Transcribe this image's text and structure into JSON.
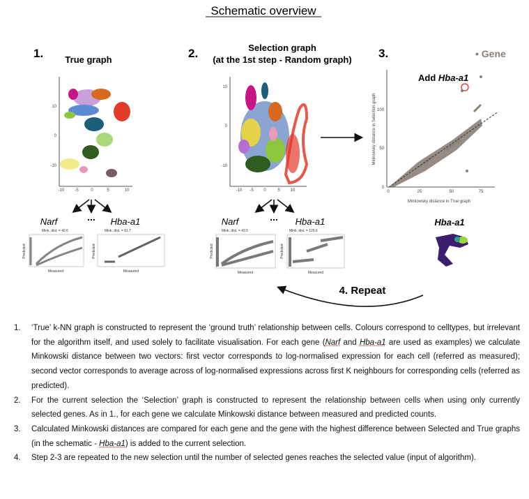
{
  "header": {
    "title": "Schematic overview"
  },
  "panels": [
    {
      "number": "1.",
      "title": "True graph",
      "xticks": [
        "-10",
        "-5",
        "0",
        "5",
        "10"
      ],
      "yticks": [
        "10",
        "0",
        "-10"
      ],
      "genes": [
        {
          "name": "Narf",
          "distance": "Mink. dist. = 42.6"
        },
        {
          "name": "Hba-a1",
          "distance": "Mink. dist. = 61.7"
        }
      ]
    },
    {
      "number": "2.",
      "title": [
        "Selection graph",
        "(at the 1st step - Random graph)"
      ],
      "xticks": [
        "-10",
        "-5",
        "0",
        "5",
        "10"
      ],
      "yticks": [
        "10",
        "0",
        "-10"
      ],
      "genes": [
        {
          "name": "Narf",
          "distance": "Mink. dist. = 43.5"
        },
        {
          "name": "Hba-a1",
          "distance": "Mink. dist. = 129.6"
        }
      ]
    },
    {
      "number": "3.",
      "legend": "• Gene",
      "annotation": [
        "Add ",
        "Hba-a1"
      ],
      "xticks": [
        "0",
        "25",
        "50",
        "75"
      ],
      "yticks": [
        "0",
        "50",
        "100"
      ],
      "xlabel": "Minkowsky distance in True graph",
      "ylabel": "Minkowsky distance in Selection graph",
      "gene": "Hba-a1"
    }
  ],
  "small_plot": {
    "xlabel": "Measured",
    "ylabel": "Predicted"
  },
  "ellipsis": "...",
  "repeat": "4. Repeat",
  "items": [
    {
      "marker": "1.",
      "parts": [
        "‘True’ k-NN graph is constructed to represent the ‘ground truth’ relationship between cells. Colours correspond to celltypes, but irrelevant for the algorithm itself, and used solely to facilitate visualisation. For each gene (",
        "Narf",
        " and ",
        "Hba-a1",
        " are used as examples) we calculate Minkowski distance between two vectors: first vector corresponds to log-normalised expression for each cell (referred as measured); second vector corresponds to average across of log-normalised expressions across first K neighbours for corresponding cells (referred as predicted)."
      ]
    },
    {
      "marker": "2.",
      "parts": [
        "For the current selection the ‘Selection’ graph is constructed to represent the relationship between cells when using only currently selected genes. As in 1., for each gene we calculate Minkowski distance between measured and predicted counts."
      ]
    },
    {
      "marker": "3.",
      "parts": [
        "Calculated Minkowski distances are compared for each gene and the gene with the highest difference between Selected and True graphs (in the schematic - ",
        "Hba-a1",
        ") is added to the current selection."
      ]
    },
    {
      "marker": "4.",
      "parts": [
        "Step 2-3 are repeated to the new selection until the number of selected genes reaches the selected value (input of algorithm)."
      ]
    }
  ]
}
